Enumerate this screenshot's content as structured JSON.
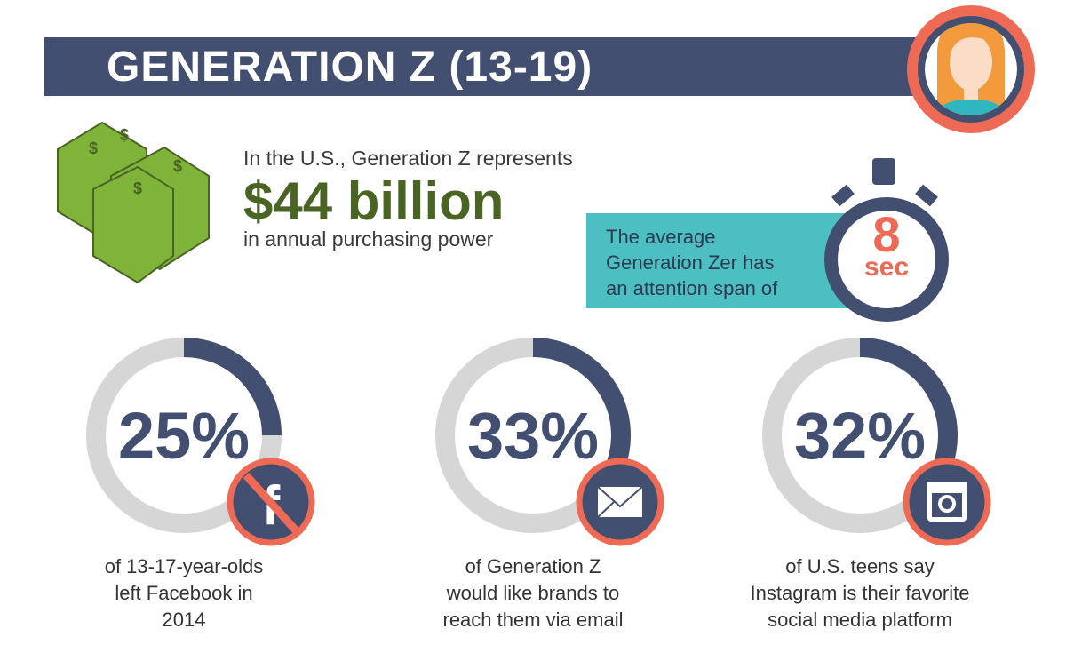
{
  "header": {
    "title": "GENERATION Z (13-19)"
  },
  "purchasing": {
    "intro": "In the U.S., Generation Z represents",
    "amount": "$44 billion",
    "outro": "in annual purchasing power"
  },
  "attention": {
    "lines": [
      "The average",
      "Generation Zer has",
      "an attention span of"
    ],
    "value": "8",
    "unit": "sec"
  },
  "stats": [
    {
      "percent_label": "25%",
      "percent": 25,
      "icon": "facebook-banned-icon",
      "caption": [
        "of 13-17-year-olds",
        "left Facebook in",
        "2014"
      ]
    },
    {
      "percent_label": "33%",
      "percent": 33,
      "icon": "envelope-icon",
      "caption": [
        "of Generation Z",
        "would like brands to",
        "reach them via email"
      ]
    },
    {
      "percent_label": "32%",
      "percent": 32,
      "icon": "instagram-icon",
      "caption": [
        "of U.S. teens say",
        "Instagram is their favorite",
        "social media platform"
      ]
    }
  ],
  "colors": {
    "navy": "#434f71",
    "coral": "#ee6a55",
    "teal": "#4bbfc2",
    "green": "#4a6423",
    "money": "#7fb33a",
    "gray": "#d6d6d6"
  }
}
